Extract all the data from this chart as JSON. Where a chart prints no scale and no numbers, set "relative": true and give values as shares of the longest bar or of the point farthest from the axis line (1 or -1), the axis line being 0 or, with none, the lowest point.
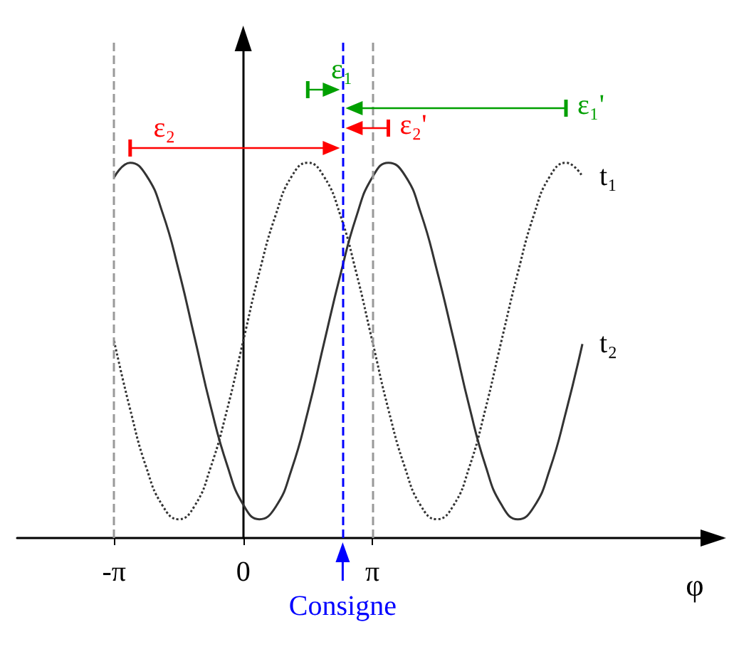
{
  "chart_data": {
    "type": "line",
    "relative": true,
    "xlabel": "φ",
    "marker": "none",
    "x": [
      -3.14,
      -2.75,
      -2.36,
      -1.96,
      -1.57,
      -1.18,
      -0.79,
      -0.39,
      0,
      0.39,
      0.79,
      1.18,
      1.57,
      1.96,
      2.36,
      2.75,
      3.14,
      3.53,
      3.93,
      4.32,
      4.71,
      5.11,
      5.5,
      5.89,
      6.28,
      6.68,
      7.07,
      7.46,
      7.85,
      8.25
    ],
    "xlim": [
      -5.5,
      11.4
    ],
    "xticks": [
      {
        "value": -3.14159,
        "label": "-π"
      },
      0,
      {
        "value": 3.14159,
        "label": "π"
      }
    ],
    "series": [
      {
        "name": "t₁",
        "color": "#333333",
        "line_style": "dotted",
        "values": [
          0.525,
          0.343,
          0.189,
          0.086,
          0.05,
          0.086,
          0.189,
          0.343,
          0.525,
          0.707,
          0.861,
          0.964,
          1,
          0.964,
          0.861,
          0.707,
          0.525,
          0.343,
          0.189,
          0.086,
          0.05,
          0.086,
          0.189,
          0.343,
          0.525,
          0.707,
          0.861,
          0.964,
          1,
          0.964
        ]
      },
      {
        "name": "t₂",
        "color": "#333333",
        "line_style": "solid",
        "values": [
          0.961,
          1,
          0.967,
          0.866,
          0.714,
          0.533,
          0.35,
          0.194,
          0.089,
          0.05,
          0.083,
          0.184,
          0.336,
          0.517,
          0.7,
          0.856,
          0.961,
          1,
          0.967,
          0.866,
          0.714,
          0.533,
          0.35,
          0.194,
          0.089,
          0.05,
          0.083,
          0.184,
          0.336,
          0.517
        ]
      }
    ],
    "ref_lines": [
      {
        "axis": "x",
        "value": -3.14,
        "color": "#999999",
        "line_style": "dashed"
      },
      {
        "axis": "x",
        "value": 3.14,
        "color": "#999999",
        "line_style": "dashed"
      },
      {
        "axis": "x",
        "value": 2.42,
        "label": "Consigne",
        "color": "#0000ff",
        "line_style": "dashed"
      }
    ],
    "annotations": [
      {
        "text": "ε₂",
        "x": -2.75,
        "y": 1
      },
      {
        "text": "ε₂'",
        "x": 3.53,
        "y": 1
      },
      {
        "text": "ε₁",
        "x": 1.57,
        "y": 1
      },
      {
        "text": "ε₁'",
        "x": 7.85,
        "y": 1
      }
    ]
  }
}
